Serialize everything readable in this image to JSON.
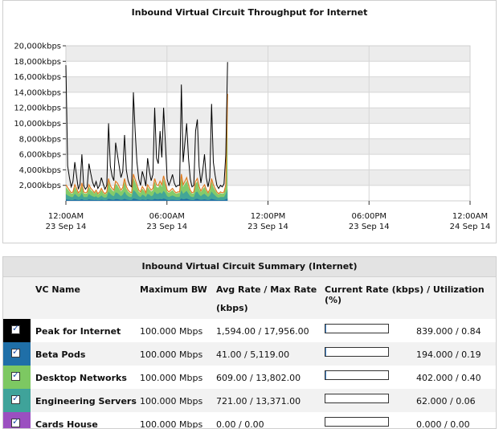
{
  "chart_data": {
    "type": "area",
    "title": "Inbound Virtual Circuit Throughput for Internet",
    "y_ticks": [
      "20,000kbps",
      "18,000kbps",
      "16,000kbps",
      "14,000kbps",
      "12,000kbps",
      "10,000kbps",
      "8,000kbps",
      "6,000kbps",
      "4,000kbps",
      "2,000kbps"
    ],
    "ylim": [
      0,
      20000
    ],
    "x_ticks": [
      {
        "time": "12:00AM",
        "date": "23 Sep 14"
      },
      {
        "time": "06:00AM",
        "date": "23 Sep 14"
      },
      {
        "time": "12:00PM",
        "date": "23 Sep 14"
      },
      {
        "time": "06:00PM",
        "date": "23 Sep 14"
      },
      {
        "time": "12:00AM",
        "date": "24 Sep 14"
      }
    ],
    "xlim_hours": [
      0,
      24
    ],
    "data_end_hour": 9.6,
    "grid": true,
    "series": [
      {
        "name": "Peak for Internet",
        "color": "#000000",
        "values": [
          17500,
          4500,
          3000,
          1800,
          2500,
          5000,
          3200,
          1500,
          2200,
          6000,
          2000,
          1500,
          1800,
          4800,
          3500,
          2400,
          1800,
          2500,
          1600,
          2000,
          3000,
          2200,
          1500,
          2000,
          10000,
          4500,
          3200,
          2600,
          7500,
          6000,
          4500,
          3000,
          3800,
          8500,
          4000,
          2600,
          2000,
          1800,
          14000,
          9000,
          5000,
          2800,
          2000,
          3800,
          3000,
          1900,
          5500,
          3800,
          2600,
          3400,
          12000,
          5500,
          4800,
          9000,
          5600,
          12000,
          7500,
          2800,
          2000,
          2600,
          3400,
          2300,
          1800,
          2000,
          2000,
          15000,
          5000,
          7500,
          10000,
          5500,
          2800,
          1800,
          2000,
          9000,
          10500,
          4400,
          2300,
          3800,
          6000,
          3000,
          1800,
          3000,
          12500,
          5000,
          3300,
          2000,
          1600,
          2000,
          1800,
          2200,
          6000,
          17900
        ]
      },
      {
        "name": "Desktop Networks",
        "color": "#7dc862",
        "values": [
          1800,
          1500,
          1200,
          900,
          1000,
          1800,
          1400,
          900,
          1100,
          2000,
          1000,
          900,
          1000,
          1800,
          1400,
          1200,
          900,
          1200,
          800,
          1000,
          1400,
          1000,
          800,
          1000,
          2500,
          1700,
          1400,
          1200,
          2200,
          2000,
          1600,
          1200,
          1500,
          2500,
          1600,
          1200,
          1000,
          900,
          3000,
          2400,
          1800,
          1200,
          1000,
          1600,
          1300,
          900,
          1800,
          1500,
          1200,
          1400,
          2500,
          1800,
          1700,
          2200,
          1800,
          2800,
          2000,
          1200,
          1000,
          1200,
          1400,
          1100,
          900,
          1000,
          1000,
          3000,
          1800,
          2200,
          2600,
          1800,
          1200,
          900,
          1000,
          2200,
          2500,
          1600,
          1100,
          1500,
          1800,
          1300,
          900,
          1300,
          2500,
          1800,
          1400,
          1000,
          800,
          1000,
          900,
          1000,
          1800,
          12000
        ]
      },
      {
        "name": "Engineering Servers",
        "color": "#3fa39a",
        "values": [
          900,
          700,
          600,
          500,
          500,
          900,
          700,
          500,
          600,
          1000,
          500,
          500,
          500,
          900,
          700,
          600,
          500,
          600,
          400,
          500,
          700,
          500,
          400,
          500,
          1200,
          900,
          700,
          600,
          1100,
          1000,
          800,
          600,
          800,
          1200,
          800,
          600,
          500,
          500,
          1400,
          1200,
          900,
          600,
          500,
          800,
          700,
          500,
          900,
          800,
          600,
          700,
          1200,
          900,
          900,
          1100,
          900,
          1300,
          1000,
          600,
          500,
          600,
          700,
          600,
          500,
          500,
          500,
          1400,
          900,
          1100,
          1300,
          900,
          600,
          500,
          500,
          1100,
          1200,
          800,
          600,
          800,
          900,
          700,
          500,
          700,
          1200,
          900,
          700,
          500,
          400,
          500,
          500,
          500,
          900,
          1500
        ]
      },
      {
        "name": "Beta Pods",
        "color": "#1f6fa8",
        "values": [
          200,
          150,
          120,
          100,
          100,
          200,
          150,
          100,
          120,
          220,
          100,
          100,
          100,
          200,
          150,
          120,
          100,
          120,
          90,
          100,
          150,
          100,
          90,
          100,
          260,
          200,
          150,
          120,
          240,
          220,
          170,
          120,
          160,
          260,
          170,
          120,
          100,
          100,
          300,
          260,
          200,
          120,
          100,
          170,
          140,
          100,
          200,
          160,
          120,
          150,
          260,
          200,
          190,
          240,
          200,
          280,
          220,
          120,
          100,
          120,
          150,
          120,
          100,
          100,
          100,
          300,
          200,
          240,
          280,
          200,
          120,
          100,
          100,
          240,
          260,
          170,
          120,
          160,
          200,
          140,
          100,
          140,
          260,
          200,
          150,
          100,
          90,
          100,
          100,
          100,
          200,
          300
        ]
      },
      {
        "name": "Cards House",
        "color": "#9b4fc0",
        "values": []
      }
    ]
  },
  "summary": {
    "title": "Inbound Virtual Circuit Summary (Internet)",
    "headers": {
      "name": "VC Name",
      "max_bw": "Maximum BW",
      "avg_max_line1": "Avg Rate / Max Rate",
      "avg_max_line2": "(kbps)",
      "current": "Current Rate (kbps) / Utilization (%)"
    },
    "rows": [
      {
        "color": "#000000",
        "name": "Peak for Internet",
        "max_bw": "100.000 Mbps",
        "avg_max": "1,594.00 / 17,956.00",
        "current": "839.000 / 0.84",
        "util_fraction": 0.0084
      },
      {
        "color": "#1f6fa8",
        "name": "Beta Pods",
        "max_bw": "100.000 Mbps",
        "avg_max": "41.00 / 5,119.00",
        "current": "194.000 / 0.19",
        "util_fraction": 0.0019
      },
      {
        "color": "#7dc862",
        "name": "Desktop Networks",
        "max_bw": "100.000 Mbps",
        "avg_max": "609.00 / 13,802.00",
        "current": "402.000 / 0.40",
        "util_fraction": 0.004
      },
      {
        "color": "#3fa39a",
        "name": "Engineering Servers",
        "max_bw": "100.000 Mbps",
        "avg_max": "721.00 / 13,371.00",
        "current": "62.000 / 0.06",
        "util_fraction": 0.0006
      },
      {
        "color": "#9b4fc0",
        "name": "Cards House",
        "max_bw": "100.000 Mbps",
        "avg_max": "0.00 / 0.00",
        "current": "0.000 / 0.00",
        "util_fraction": 0
      }
    ]
  }
}
